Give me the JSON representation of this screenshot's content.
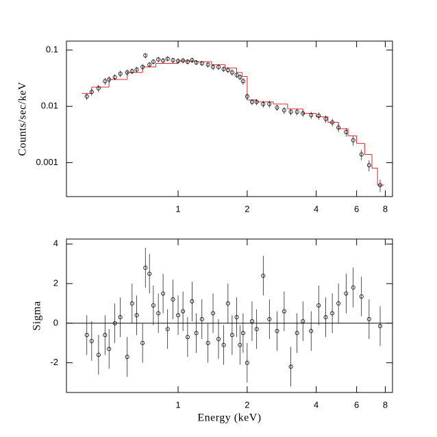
{
  "chart_data": [
    {
      "type": "scatter",
      "ylabel": "Counts/sec/keV",
      "xlog": true,
      "ylog": true,
      "xlim": [
        0.326,
        8.6
      ],
      "ylim": [
        0.00025,
        0.144
      ],
      "xticks": [
        1,
        2,
        4,
        6,
        8
      ],
      "yticks": [
        0.1,
        0.01,
        0.001
      ],
      "data": {
        "color": "#000000",
        "x": [
          0.4,
          0.42,
          0.45,
          0.48,
          0.5,
          0.53,
          0.56,
          0.6,
          0.63,
          0.66,
          0.7,
          0.72,
          0.75,
          0.78,
          0.82,
          0.86,
          0.9,
          0.95,
          1.0,
          1.05,
          1.1,
          1.15,
          1.2,
          1.27,
          1.35,
          1.42,
          1.5,
          1.58,
          1.65,
          1.72,
          1.8,
          1.86,
          1.92,
          2.0,
          2.1,
          2.2,
          2.35,
          2.5,
          2.7,
          2.9,
          3.1,
          3.3,
          3.5,
          3.8,
          4.1,
          4.4,
          4.7,
          5.0,
          5.4,
          5.8,
          6.3,
          6.8,
          7.6
        ],
        "values": [
          0.015,
          0.018,
          0.021,
          0.028,
          0.03,
          0.033,
          0.038,
          0.04,
          0.042,
          0.045,
          0.05,
          0.08,
          0.055,
          0.062,
          0.068,
          0.065,
          0.07,
          0.066,
          0.064,
          0.065,
          0.062,
          0.066,
          0.06,
          0.058,
          0.055,
          0.05,
          0.05,
          0.046,
          0.044,
          0.04,
          0.036,
          0.033,
          0.028,
          0.015,
          0.012,
          0.012,
          0.011,
          0.011,
          0.0095,
          0.0085,
          0.008,
          0.008,
          0.0075,
          0.007,
          0.0068,
          0.006,
          0.0052,
          0.0042,
          0.0035,
          0.0025,
          0.0014,
          0.0009,
          0.0004
        ],
        "errors": [
          0.002,
          0.0025,
          0.003,
          0.004,
          0.004,
          0.004,
          0.005,
          0.005,
          0.005,
          0.005,
          0.006,
          0.008,
          0.006,
          0.007,
          0.007,
          0.007,
          0.007,
          0.007,
          0.007,
          0.007,
          0.007,
          0.007,
          0.006,
          0.006,
          0.006,
          0.006,
          0.006,
          0.005,
          0.005,
          0.005,
          0.004,
          0.004,
          0.004,
          0.002,
          0.0015,
          0.0015,
          0.0015,
          0.0015,
          0.0012,
          0.0012,
          0.0011,
          0.0011,
          0.001,
          0.001,
          0.001,
          0.0009,
          0.0008,
          0.0007,
          0.0006,
          0.0005,
          0.0003,
          0.0002,
          0.0001
        ]
      },
      "model": {
        "color": "#e8202a",
        "bins": [
          0.38,
          0.42,
          0.5,
          0.6,
          0.7,
          0.8,
          1.0,
          1.2,
          1.4,
          1.6,
          1.8,
          1.9,
          2.0,
          2.2,
          2.6,
          3.0,
          3.5,
          4.0,
          4.5,
          5.0,
          5.5,
          6.0,
          6.5,
          7.0,
          7.4,
          7.9
        ],
        "values": [
          0.017,
          0.022,
          0.03,
          0.04,
          0.05,
          0.058,
          0.064,
          0.062,
          0.055,
          0.048,
          0.04,
          0.034,
          0.013,
          0.012,
          0.011,
          0.009,
          0.0075,
          0.0065,
          0.0052,
          0.004,
          0.003,
          0.0022,
          0.0014,
          0.0008,
          0.0004
        ]
      }
    },
    {
      "type": "scatter",
      "ylabel": "Sigma",
      "xlabel": "Energy (keV)",
      "xlog": true,
      "ylog": false,
      "xlim": [
        0.326,
        8.6
      ],
      "ylim": [
        -3.5,
        4.25
      ],
      "xticks": [
        1,
        2,
        4,
        6,
        8
      ],
      "yticks": [
        4,
        2,
        0,
        -2
      ],
      "reference_line": 0,
      "data": {
        "color": "#000000",
        "x": [
          0.4,
          0.42,
          0.45,
          0.48,
          0.5,
          0.53,
          0.56,
          0.6,
          0.63,
          0.66,
          0.7,
          0.72,
          0.75,
          0.78,
          0.82,
          0.86,
          0.9,
          0.95,
          1.0,
          1.05,
          1.1,
          1.15,
          1.2,
          1.27,
          1.35,
          1.42,
          1.5,
          1.58,
          1.65,
          1.72,
          1.8,
          1.86,
          1.92,
          2.0,
          2.1,
          2.2,
          2.35,
          2.5,
          2.7,
          2.9,
          3.1,
          3.3,
          3.5,
          3.8,
          4.1,
          4.4,
          4.7,
          5.0,
          5.4,
          5.8,
          6.3,
          6.8,
          7.6
        ],
        "values": [
          -0.6,
          -0.9,
          -1.6,
          -0.6,
          -1.3,
          0,
          0.3,
          -1.7,
          1.0,
          0.4,
          -1.0,
          2.8,
          2.5,
          0.9,
          0.5,
          1.5,
          -0.3,
          1.2,
          0.4,
          0.6,
          -0.7,
          1.1,
          -0.5,
          0.2,
          -1.0,
          0.5,
          -0.8,
          -1.1,
          1.0,
          -0.6,
          0.3,
          -1.1,
          -0.5,
          -2.0,
          0.1,
          -0.3,
          2.4,
          0.2,
          -0.4,
          0.6,
          -2.2,
          -0.5,
          0.1,
          -0.4,
          0.9,
          0.3,
          0.5,
          1.0,
          1.5,
          1.8,
          1.35,
          0.2,
          -0.15
        ],
        "errors": [
          1,
          1,
          1,
          1,
          1,
          1,
          1,
          1,
          1,
          1,
          1,
          1,
          1,
          1,
          1,
          1,
          1,
          1,
          1,
          1,
          1,
          1,
          1,
          1,
          1,
          1,
          1,
          1,
          1,
          1,
          1,
          1,
          1,
          1,
          1,
          1,
          1,
          1,
          1,
          1,
          1,
          1,
          1,
          1,
          1,
          1,
          1,
          1,
          1,
          1,
          1,
          1,
          1
        ]
      }
    }
  ]
}
